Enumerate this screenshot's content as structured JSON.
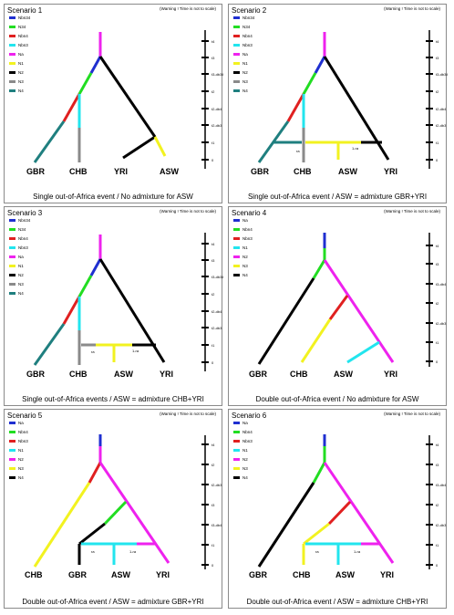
{
  "panels": [
    {
      "title": "Scenario 1",
      "warning": "(Warning ! Time is not to scale)",
      "caption": "Single out-of-Africa event / No admixture for ASW",
      "legend": [
        {
          "label": "Nbn34",
          "color": "#1f2fd0"
        },
        {
          "label": "N34",
          "color": "#22dd22"
        },
        {
          "label": "Nbn4",
          "color": "#e02020"
        },
        {
          "label": "Nbn3",
          "color": "#22e5ee"
        },
        {
          "label": "Na",
          "color": "#ee22ee"
        },
        {
          "label": "N1",
          "color": "#f2f220"
        },
        {
          "label": "N2",
          "color": "#000000"
        },
        {
          "label": "N3",
          "color": "#8a8a8a"
        },
        {
          "label": "N4",
          "color": "#1f7f7f"
        }
      ],
      "time_labels": [
        "t4",
        "t3",
        "t3-db34",
        "t2",
        "t2-db4",
        "t2-db3",
        "t1",
        "0"
      ],
      "pop_labels": [
        "GBR",
        "CHB",
        "YRI",
        "ASW"
      ],
      "rate_labels": []
    },
    {
      "title": "Scenario 2",
      "warning": "(Warning ! Time is not to scale)",
      "caption": "Single out-of-Africa event / ASW = admixture GBR+YRI",
      "legend": [
        {
          "label": "Nbn34",
          "color": "#1f2fd0"
        },
        {
          "label": "N34",
          "color": "#22dd22"
        },
        {
          "label": "Nbn4",
          "color": "#e02020"
        },
        {
          "label": "Nbn3",
          "color": "#22e5ee"
        },
        {
          "label": "Na",
          "color": "#ee22ee"
        },
        {
          "label": "N1",
          "color": "#f2f220"
        },
        {
          "label": "N2",
          "color": "#000000"
        },
        {
          "label": "N3",
          "color": "#8a8a8a"
        },
        {
          "label": "N4",
          "color": "#1f7f7f"
        }
      ],
      "time_labels": [
        "t4",
        "t3",
        "t3-db34",
        "t2",
        "t2-db4",
        "t2-db3",
        "t1",
        "0"
      ],
      "pop_labels": [
        "GBR",
        "CHB",
        "ASW",
        "YRI"
      ],
      "rate_labels": [
        "ra",
        "1-ra"
      ]
    },
    {
      "title": "Scenario 3",
      "warning": "(Warning ! Time is not to scale)",
      "caption": "Single out-of-Africa events / ASW = admixture CHB+YRI",
      "legend": [
        {
          "label": "Nbn34",
          "color": "#1f2fd0"
        },
        {
          "label": "N34",
          "color": "#22dd22"
        },
        {
          "label": "Nbn4",
          "color": "#e02020"
        },
        {
          "label": "Nbn3",
          "color": "#22e5ee"
        },
        {
          "label": "Na",
          "color": "#ee22ee"
        },
        {
          "label": "N1",
          "color": "#f2f220"
        },
        {
          "label": "N2",
          "color": "#000000"
        },
        {
          "label": "N3",
          "color": "#8a8a8a"
        },
        {
          "label": "N4",
          "color": "#1f7f7f"
        }
      ],
      "time_labels": [
        "t4",
        "t3",
        "t3-db34",
        "t2",
        "t2-db4",
        "t2-db3",
        "t1",
        "0"
      ],
      "pop_labels": [
        "GBR",
        "CHB",
        "ASW",
        "YRI"
      ],
      "rate_labels": [
        "ra",
        "1-ra"
      ]
    },
    {
      "title": "Scenario 4",
      "warning": "(Warning ! Time is not to scale)",
      "caption": "Double out-of-Africa event / No admixture for ASW",
      "legend": [
        {
          "label": "Na",
          "color": "#1f2fd0"
        },
        {
          "label": "Nbn4",
          "color": "#22dd22"
        },
        {
          "label": "Nbn3",
          "color": "#e02020"
        },
        {
          "label": "N1",
          "color": "#22e5ee"
        },
        {
          "label": "N2",
          "color": "#ee22ee"
        },
        {
          "label": "N3",
          "color": "#f2f220"
        },
        {
          "label": "N4",
          "color": "#000000"
        }
      ],
      "time_labels": [
        "t4",
        "t3",
        "t3-db4",
        "t2",
        "t2-db3",
        "t1",
        "0"
      ],
      "pop_labels": [
        "GBR",
        "CHB",
        "ASW",
        "YRI"
      ],
      "rate_labels": []
    },
    {
      "title": "Scenario 5",
      "warning": "(Warning ! Time is not to scale)",
      "caption": "Double out-of-Africa event / ASW = admixture GBR+YRI",
      "legend": [
        {
          "label": "Na",
          "color": "#1f2fd0"
        },
        {
          "label": "Nbn4",
          "color": "#22dd22"
        },
        {
          "label": "Nbn3",
          "color": "#e02020"
        },
        {
          "label": "N1",
          "color": "#22e5ee"
        },
        {
          "label": "N2",
          "color": "#ee22ee"
        },
        {
          "label": "N3",
          "color": "#f2f220"
        },
        {
          "label": "N4",
          "color": "#000000"
        }
      ],
      "time_labels": [
        "t4",
        "t2",
        "t2-db3",
        "t3",
        "t3-db4",
        "t1",
        "0"
      ],
      "pop_labels": [
        "CHB",
        "GBR",
        "ASW",
        "YRI"
      ],
      "rate_labels": [
        "ra",
        "1-ra"
      ]
    },
    {
      "title": "Scenario 6",
      "warning": "(Warning ! Time is not to scale)",
      "caption": "Double out-of-Africa event / ASW = admixture CHB+YRI",
      "legend": [
        {
          "label": "Na",
          "color": "#1f2fd0"
        },
        {
          "label": "Nbn4",
          "color": "#22dd22"
        },
        {
          "label": "Nbn3",
          "color": "#e02020"
        },
        {
          "label": "N1",
          "color": "#22e5ee"
        },
        {
          "label": "N2",
          "color": "#ee22ee"
        },
        {
          "label": "N3",
          "color": "#f2f220"
        },
        {
          "label": "N4",
          "color": "#000000"
        }
      ],
      "time_labels": [
        "t4",
        "t3",
        "t3-db4",
        "t2",
        "t2-db3",
        "t1",
        "0"
      ],
      "pop_labels": [
        "GBR",
        "CHB",
        "ASW",
        "YRI"
      ],
      "rate_labels": [
        "ra",
        "1-ra"
      ]
    }
  ]
}
